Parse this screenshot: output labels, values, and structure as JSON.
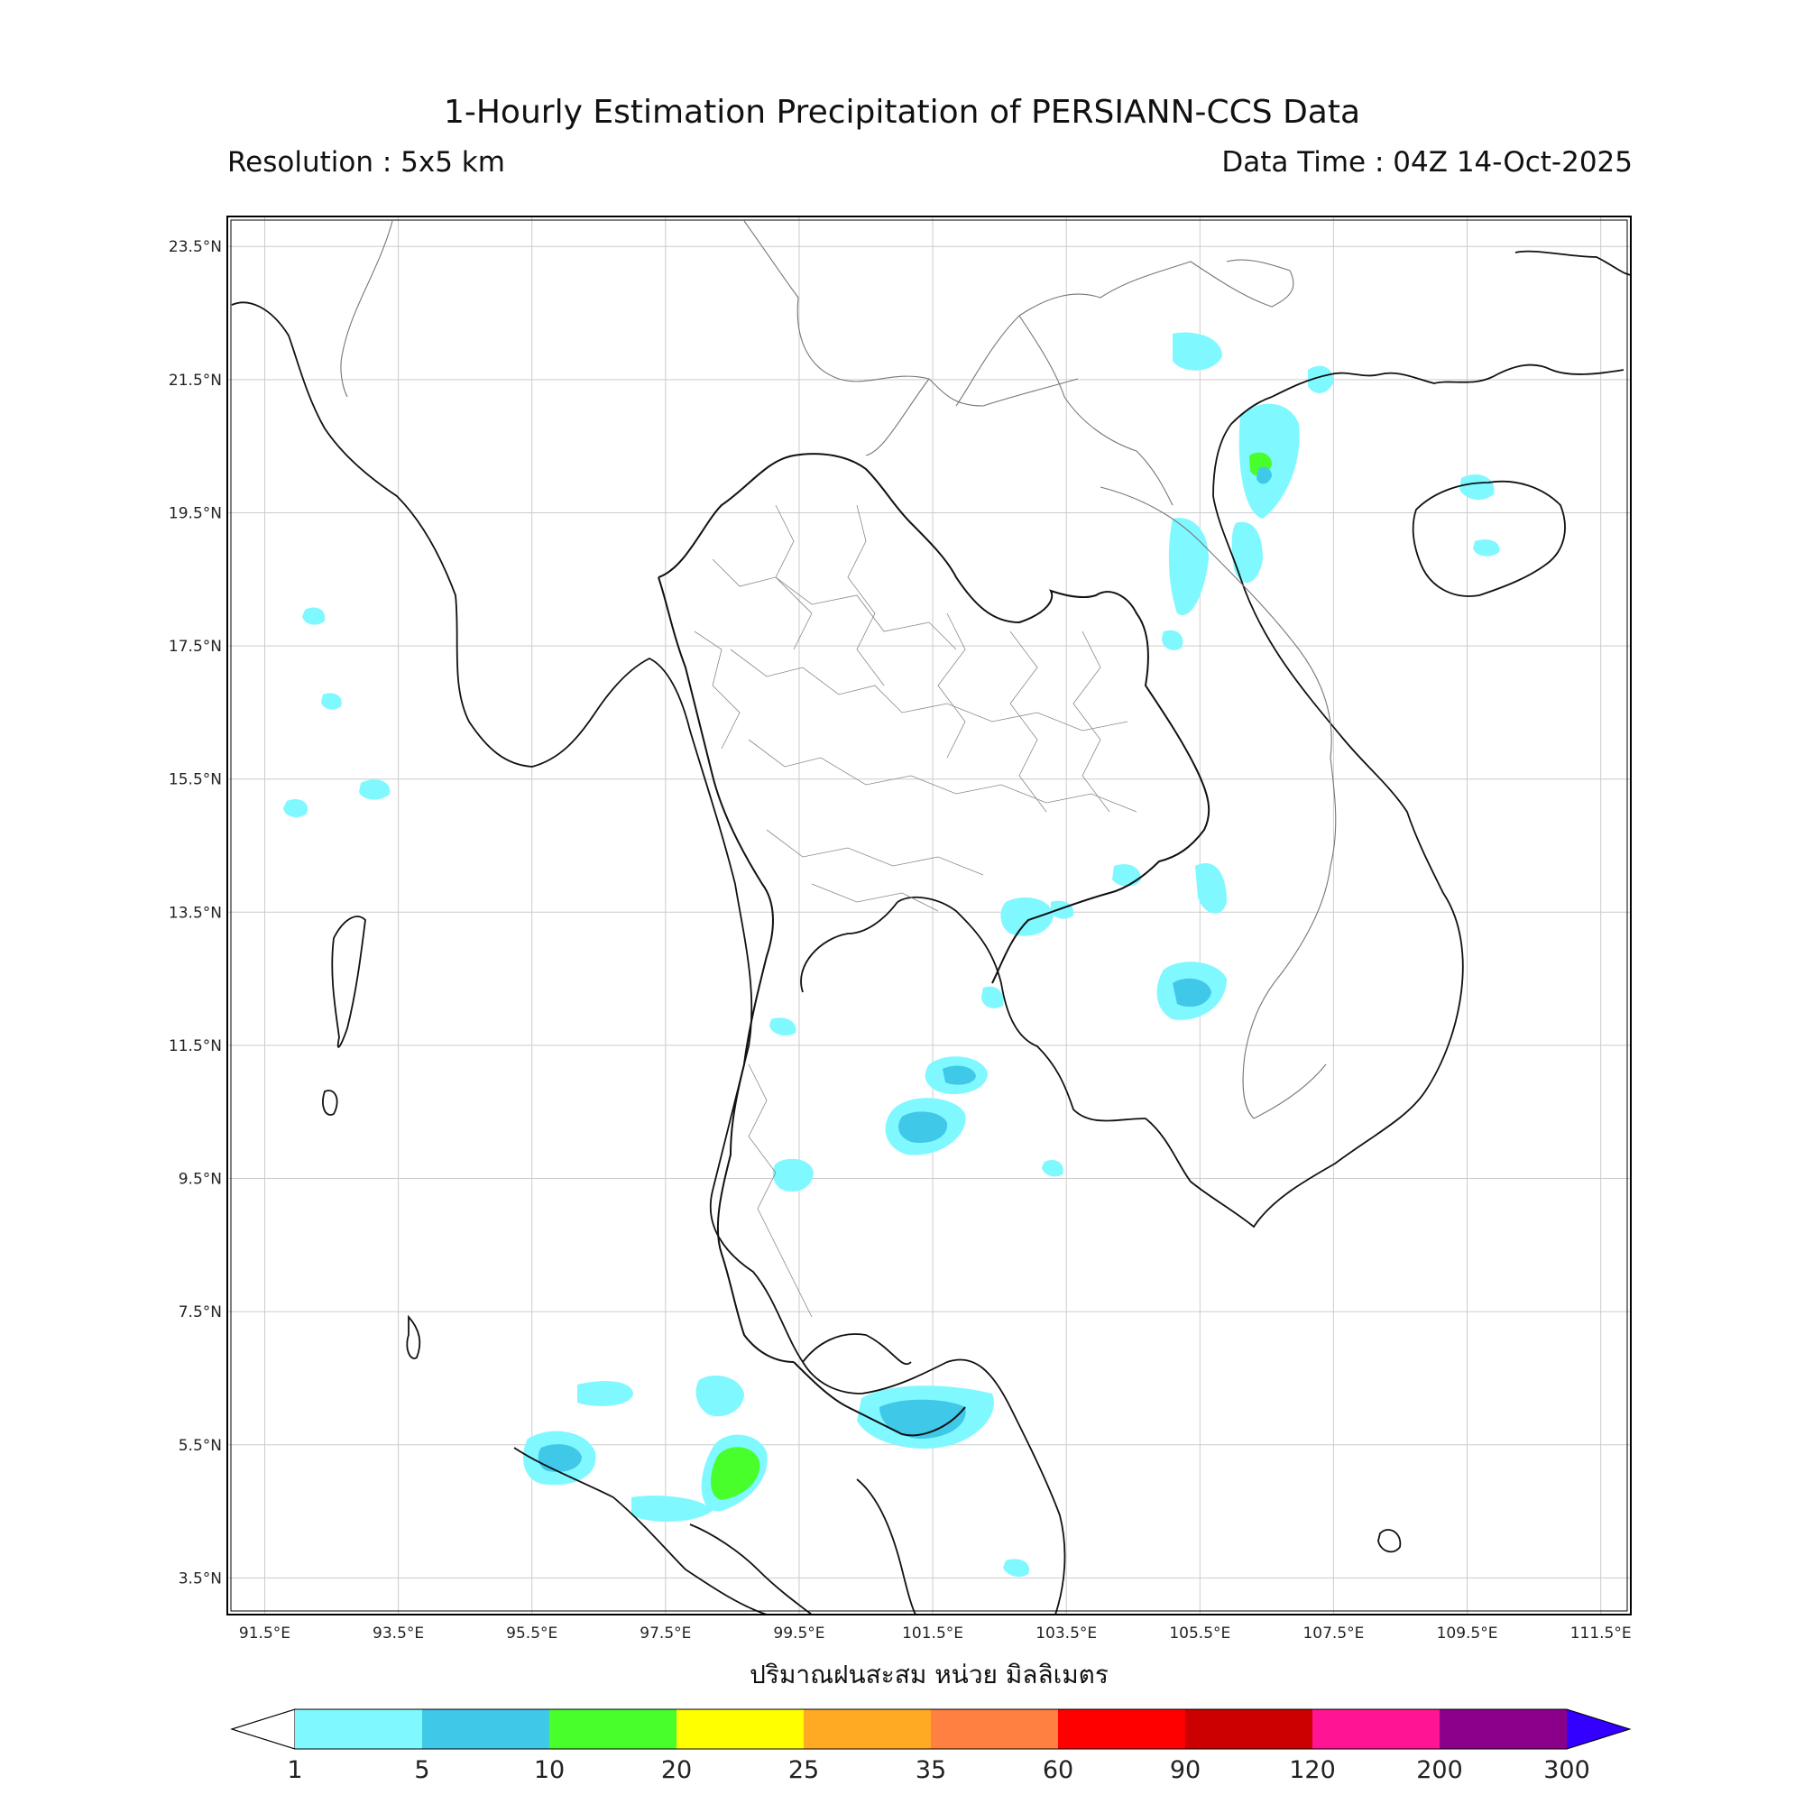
{
  "header": {
    "title": "1-Hourly Estimation Precipitation of PERSIANN-CCS Data",
    "resolution": "Resolution : 5x5 km",
    "data_time": "Data Time : 04Z 14-Oct-2025"
  },
  "map": {
    "lon_range": [
      90.94,
      111.95
    ],
    "lat_range": [
      2.95,
      23.95
    ],
    "lat_ticks": [
      "23.5°N",
      "21.5°N",
      "19.5°N",
      "17.5°N",
      "15.5°N",
      "13.5°N",
      "11.5°N",
      "9.5°N",
      "7.5°N",
      "5.5°N",
      "3.5°N"
    ],
    "lon_ticks": [
      "91.5°E",
      "93.5°E",
      "95.5°E",
      "97.5°E",
      "99.5°E",
      "101.5°E",
      "103.5°E",
      "105.5°E",
      "107.5°E",
      "109.5°E",
      "111.5°E"
    ],
    "grid": true,
    "xlabel": "ปริมาณฝนสะสม หน่วย มิลลิเมตร"
  },
  "colorbar": {
    "ticks": [
      "1",
      "5",
      "10",
      "20",
      "25",
      "35",
      "60",
      "90",
      "120",
      "200",
      "300"
    ],
    "colors": [
      "#7ff8ff",
      "#40c8e8",
      "#48ff2c",
      "#ffff00",
      "#ffaa22",
      "#ff8040",
      "#ff0000",
      "#cc0000",
      "#ff1493",
      "#8b008b"
    ],
    "over_color": "#3300ff",
    "under_color": "#ffffff"
  },
  "rain_cells": [
    {
      "lon": 98.6,
      "lat": 5.3,
      "intensity": "10-20"
    },
    {
      "lon": 101.3,
      "lat": 6.2,
      "intensity": "5-10"
    },
    {
      "lon": 100.8,
      "lat": 10.2,
      "intensity": "5-10"
    },
    {
      "lon": 102.0,
      "lat": 11.3,
      "intensity": "5-10"
    },
    {
      "lon": 105.6,
      "lat": 12.3,
      "intensity": "5-10"
    },
    {
      "lon": 106.4,
      "lat": 20.2,
      "intensity": "10-20"
    },
    {
      "lon": 95.9,
      "lat": 5.3,
      "intensity": "5-10"
    },
    {
      "lon": 99.4,
      "lat": 9.7,
      "intensity": "5-10"
    },
    {
      "lon": 103.2,
      "lat": 13.5,
      "intensity": "1-5"
    },
    {
      "lon": 106.5,
      "lat": 19.0,
      "intensity": "1-5"
    },
    {
      "lon": 105.0,
      "lat": 21.8,
      "intensity": "1-5"
    }
  ]
}
